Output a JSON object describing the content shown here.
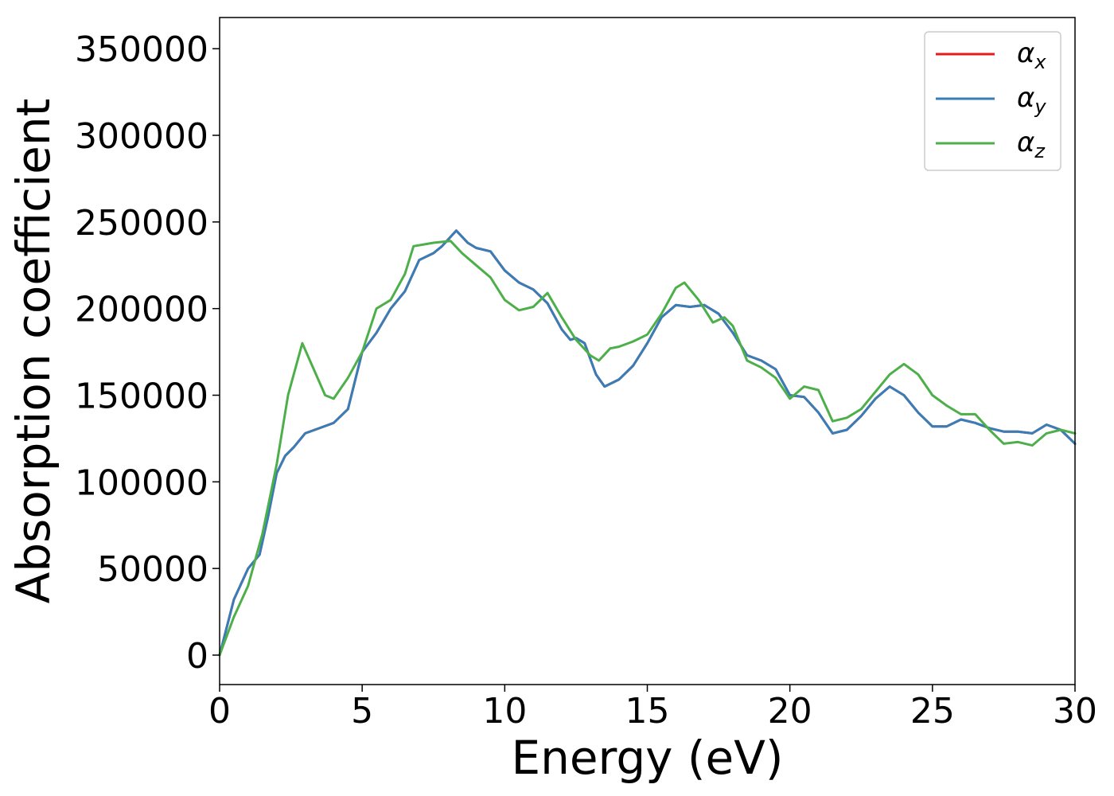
{
  "chart_data": {
    "type": "line",
    "xlabel": "Energy (eV)",
    "ylabel": "Absorption coefficient",
    "xlim": [
      0,
      30
    ],
    "ylim": [
      -17000,
      368000
    ],
    "x_ticks": [
      "0",
      "5",
      "10",
      "15",
      "20",
      "25",
      "30"
    ],
    "y_ticks": [
      "0",
      "50000",
      "100000",
      "150000",
      "200000",
      "250000",
      "300000",
      "350000"
    ],
    "grid": false,
    "legend_position": "top-right",
    "series": [
      {
        "name": "α",
        "subscript": "x",
        "color": "#e41a1c",
        "x": [
          0,
          0.5,
          1.0,
          1.4,
          1.7,
          2.0,
          2.3,
          2.6,
          3.0,
          3.5,
          4.0,
          4.5,
          5.0,
          5.5,
          6.0,
          6.5,
          7.0,
          7.5,
          7.8,
          8.3,
          8.7,
          9.0,
          9.5,
          10.0,
          10.5,
          11.0,
          11.5,
          12.0,
          12.3,
          12.5,
          12.8,
          13.2,
          13.5,
          14.0,
          14.5,
          15.0,
          15.5,
          16.0,
          16.5,
          17.0,
          17.5,
          18.0,
          18.5,
          19.0,
          19.5,
          20.0,
          20.5,
          21.0,
          21.5,
          22.0,
          22.5,
          23.0,
          23.5,
          24.0,
          24.5,
          25.0,
          25.5,
          26.0,
          26.5,
          27.0,
          27.5,
          28.0,
          28.5,
          29.0,
          29.5,
          30.0
        ],
        "y": [
          0,
          32000,
          50000,
          58000,
          80000,
          105000,
          115000,
          120000,
          128000,
          131000,
          134000,
          142000,
          175000,
          186000,
          200000,
          210000,
          228000,
          232000,
          236000,
          245000,
          238000,
          235000,
          233000,
          222000,
          215000,
          211000,
          203000,
          188000,
          182000,
          183000,
          180000,
          162000,
          155000,
          159000,
          167000,
          180000,
          195000,
          202000,
          201000,
          202000,
          197000,
          186000,
          173000,
          170000,
          165000,
          150000,
          149000,
          140000,
          128000,
          130000,
          138000,
          148000,
          155000,
          150000,
          140000,
          132000,
          132000,
          136000,
          134000,
          131000,
          129000,
          129000,
          128000,
          133000,
          130000,
          122000
        ]
      },
      {
        "name": "α",
        "subscript": "y",
        "color": "#377eb8",
        "x": [
          0,
          0.5,
          1.0,
          1.4,
          1.7,
          2.0,
          2.3,
          2.6,
          3.0,
          3.5,
          4.0,
          4.5,
          5.0,
          5.5,
          6.0,
          6.5,
          7.0,
          7.5,
          7.8,
          8.3,
          8.7,
          9.0,
          9.5,
          10.0,
          10.5,
          11.0,
          11.5,
          12.0,
          12.3,
          12.5,
          12.8,
          13.2,
          13.5,
          14.0,
          14.5,
          15.0,
          15.5,
          16.0,
          16.5,
          17.0,
          17.5,
          18.0,
          18.5,
          19.0,
          19.5,
          20.0,
          20.5,
          21.0,
          21.5,
          22.0,
          22.5,
          23.0,
          23.5,
          24.0,
          24.5,
          25.0,
          25.5,
          26.0,
          26.5,
          27.0,
          27.5,
          28.0,
          28.5,
          29.0,
          29.5,
          30.0
        ],
        "y": [
          0,
          32000,
          50000,
          58000,
          80000,
          105000,
          115000,
          120000,
          128000,
          131000,
          134000,
          142000,
          175000,
          186000,
          200000,
          210000,
          228000,
          232000,
          236000,
          245000,
          238000,
          235000,
          233000,
          222000,
          215000,
          211000,
          203000,
          188000,
          182000,
          183000,
          180000,
          162000,
          155000,
          159000,
          167000,
          180000,
          195000,
          202000,
          201000,
          202000,
          197000,
          186000,
          173000,
          170000,
          165000,
          150000,
          149000,
          140000,
          128000,
          130000,
          138000,
          148000,
          155000,
          150000,
          140000,
          132000,
          132000,
          136000,
          134000,
          131000,
          129000,
          129000,
          128000,
          133000,
          130000,
          122000
        ]
      },
      {
        "name": "α",
        "subscript": "z",
        "color": "#4daf4a",
        "x": [
          0,
          0.5,
          1.0,
          1.5,
          2.0,
          2.4,
          2.9,
          3.3,
          3.7,
          4.0,
          4.5,
          5.0,
          5.5,
          6.0,
          6.5,
          6.8,
          7.5,
          8.1,
          8.5,
          9.0,
          9.5,
          10.0,
          10.5,
          11.0,
          11.5,
          12.0,
          12.5,
          13.0,
          13.3,
          13.7,
          14.0,
          14.5,
          15.0,
          15.5,
          16.0,
          16.3,
          16.8,
          17.3,
          17.7,
          18.0,
          18.5,
          19.0,
          19.5,
          20.0,
          20.5,
          21.0,
          21.5,
          22.0,
          22.5,
          23.0,
          23.5,
          24.0,
          24.5,
          25.0,
          25.5,
          26.0,
          26.5,
          27.0,
          27.5,
          28.0,
          28.5,
          29.0,
          29.5,
          30.0
        ],
        "y": [
          0,
          22000,
          40000,
          70000,
          110000,
          150000,
          180000,
          165000,
          150000,
          148000,
          160000,
          175000,
          200000,
          205000,
          220000,
          236000,
          238000,
          239000,
          232000,
          225000,
          218000,
          205000,
          199000,
          201000,
          209000,
          195000,
          182000,
          173000,
          170000,
          177000,
          178000,
          181000,
          185000,
          197000,
          212000,
          215000,
          205000,
          192000,
          195000,
          190000,
          170000,
          166000,
          160000,
          148000,
          155000,
          153000,
          135000,
          137000,
          142000,
          152000,
          162000,
          168000,
          162000,
          150000,
          144000,
          139000,
          139000,
          130000,
          122000,
          123000,
          121000,
          128000,
          130000,
          128000
        ]
      }
    ]
  }
}
